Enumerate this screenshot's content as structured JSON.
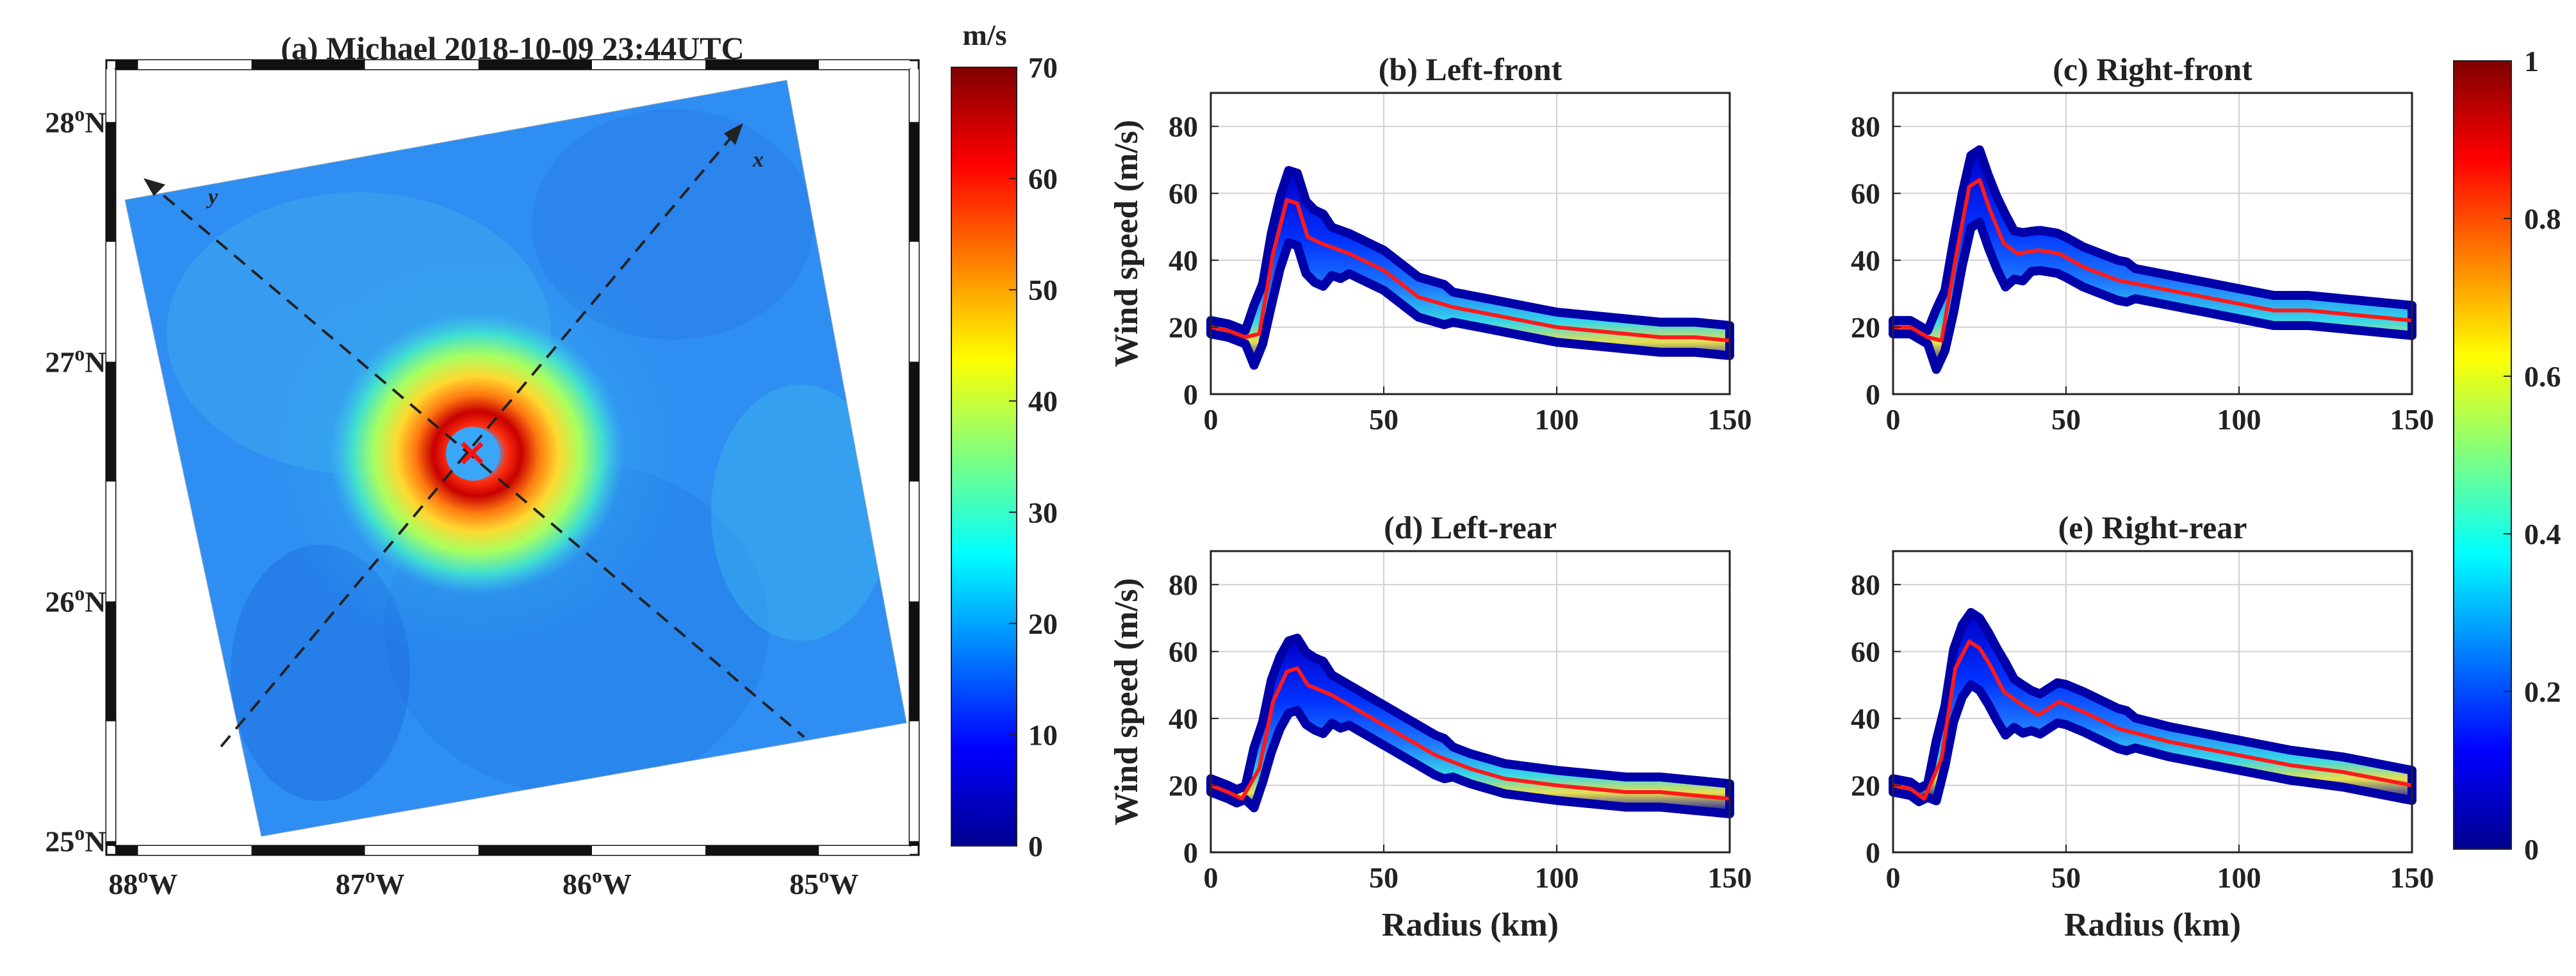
{
  "chart_data": [
    {
      "type": "heatmap",
      "title": "(a) Michael 2018-10-09 23:44UTC",
      "x_tick_labels": [
        "88°W",
        "87°W",
        "86°W",
        "85°W"
      ],
      "y_tick_labels": [
        "28°N",
        "27°N",
        "26°N",
        "25°N"
      ],
      "lon_range": [
        -88.1,
        -84.6
      ],
      "lat_range": [
        24.98,
        28.22
      ],
      "center": {
        "lon": -86.5,
        "lat": 26.65
      },
      "axis_markers": [
        "x",
        "y"
      ],
      "colorbar": {
        "unit": "m/s",
        "min": 0,
        "max": 70,
        "ticks": [
          0,
          10,
          20,
          30,
          40,
          50,
          60,
          70
        ]
      }
    },
    {
      "type": "scatter",
      "title": "(b) Left-front",
      "xlabel": "",
      "ylabel": "Wind speed (m/s)",
      "xlim": [
        0,
        150
      ],
      "ylim": [
        0,
        90
      ],
      "xticks": [
        0,
        50,
        100,
        150
      ],
      "yticks": [
        0,
        20,
        40,
        60,
        80
      ],
      "grid": true,
      "mean_profile": {
        "radius": [
          0,
          5,
          10,
          14,
          18,
          22,
          25,
          28,
          32,
          40,
          50,
          60,
          70,
          80,
          90,
          100,
          110,
          120,
          130,
          140,
          150
        ],
        "speed": [
          20,
          19,
          17,
          18,
          42,
          58,
          57,
          47,
          45,
          42,
          37,
          29,
          26,
          24,
          22,
          20,
          19,
          18,
          17,
          17,
          16
        ]
      }
    },
    {
      "type": "scatter",
      "title": "(c) Right-front",
      "xlabel": "",
      "ylabel": "",
      "xlim": [
        0,
        150
      ],
      "ylim": [
        0,
        90
      ],
      "xticks": [
        0,
        50,
        100,
        150
      ],
      "yticks": [
        0,
        20,
        40,
        60,
        80
      ],
      "grid": true,
      "mean_profile": {
        "radius": [
          0,
          5,
          10,
          14,
          18,
          22,
          25,
          28,
          32,
          36,
          42,
          48,
          55,
          65,
          80,
          100,
          110,
          120,
          130,
          140,
          150
        ],
        "speed": [
          20,
          20,
          17,
          16,
          40,
          62,
          64,
          55,
          45,
          42,
          43,
          42,
          38,
          34,
          31,
          27,
          25,
          25,
          24,
          23,
          22
        ]
      }
    },
    {
      "type": "scatter",
      "title": "(d) Left-rear",
      "xlabel": "Radius (km)",
      "ylabel": "Wind speed (m/s)",
      "xlim": [
        0,
        150
      ],
      "ylim": [
        0,
        90
      ],
      "xticks": [
        0,
        50,
        100,
        150
      ],
      "yticks": [
        0,
        20,
        40,
        60,
        80
      ],
      "grid": true,
      "mean_profile": {
        "radius": [
          0,
          5,
          9,
          14,
          18,
          22,
          25,
          28,
          35,
          45,
          55,
          65,
          75,
          85,
          100,
          110,
          120,
          130,
          140,
          150
        ],
        "speed": [
          20,
          18,
          16,
          25,
          45,
          54,
          55,
          50,
          47,
          41,
          35,
          29,
          25,
          22,
          20,
          19,
          18,
          18,
          17,
          16
        ]
      }
    },
    {
      "type": "scatter",
      "title": "(e) Right-rear",
      "xlabel": "Radius (km)",
      "ylabel": "",
      "xlim": [
        0,
        150
      ],
      "ylim": [
        0,
        90
      ],
      "xticks": [
        0,
        50,
        100,
        150
      ],
      "yticks": [
        0,
        20,
        40,
        60,
        80
      ],
      "grid": true,
      "mean_profile": {
        "radius": [
          0,
          5,
          9,
          14,
          18,
          22,
          25,
          28,
          32,
          36,
          42,
          48,
          55,
          65,
          80,
          100,
          115,
          130,
          140,
          150
        ],
        "speed": [
          20,
          19,
          16,
          28,
          55,
          63,
          61,
          56,
          48,
          45,
          41,
          45,
          42,
          37,
          33,
          29,
          26,
          24,
          22,
          20
        ]
      }
    }
  ],
  "shared_colorbar": {
    "min": 0,
    "max": 1,
    "ticks": [
      "0",
      "0.2",
      "0.4",
      "0.6",
      "0.8",
      "1"
    ]
  }
}
